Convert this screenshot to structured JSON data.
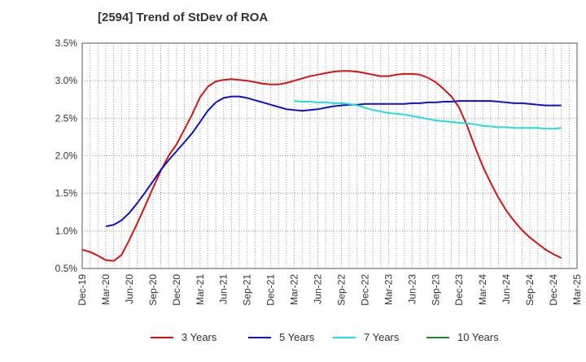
{
  "chart_data": {
    "type": "line",
    "title": "[2594]  Trend of StDev of ROA",
    "xlabel": "",
    "ylabel": "",
    "x_ticks": [
      "Dec-19",
      "Mar-20",
      "Jun-20",
      "Sep-20",
      "Dec-20",
      "Mar-21",
      "Jun-21",
      "Sep-21",
      "Dec-21",
      "Mar-22",
      "Jun-22",
      "Sep-22",
      "Dec-22",
      "Mar-23",
      "Jun-23",
      "Sep-23",
      "Dec-23",
      "Mar-24",
      "Jun-24",
      "Sep-24",
      "Dec-24",
      "Mar-25"
    ],
    "y_ticks": [
      "0.5%",
      "1.0%",
      "1.5%",
      "2.0%",
      "2.5%",
      "3.0%",
      "3.5%"
    ],
    "ylim": [
      0.5,
      3.5
    ],
    "y_unit": "%",
    "grid": "dotted vertical and horizontal",
    "legend_position": "bottom",
    "series": [
      {
        "name": "3 Years",
        "color": "#dd1111",
        "points": [
          [
            "Dec-19",
            0.75
          ],
          [
            "Jan-20",
            0.72
          ],
          [
            "Feb-20",
            0.67
          ],
          [
            "Mar-20",
            0.61
          ],
          [
            "Apr-20",
            0.6
          ],
          [
            "May-20",
            0.68
          ],
          [
            "Jun-20",
            0.88
          ],
          [
            "Jul-20",
            1.1
          ],
          [
            "Aug-20",
            1.33
          ],
          [
            "Sep-20",
            1.57
          ],
          [
            "Oct-20",
            1.8
          ],
          [
            "Nov-20",
            2.0
          ],
          [
            "Dec-20",
            2.15
          ],
          [
            "Jan-21",
            2.35
          ],
          [
            "Feb-21",
            2.55
          ],
          [
            "Mar-21",
            2.78
          ],
          [
            "Apr-21",
            2.92
          ],
          [
            "May-21",
            2.99
          ],
          [
            "Jun-21",
            3.01
          ],
          [
            "Jul-21",
            3.02
          ],
          [
            "Aug-21",
            3.01
          ],
          [
            "Sep-21",
            3.0
          ],
          [
            "Oct-21",
            2.98
          ],
          [
            "Nov-21",
            2.96
          ],
          [
            "Dec-21",
            2.95
          ],
          [
            "Jan-22",
            2.95
          ],
          [
            "Feb-22",
            2.97
          ],
          [
            "Mar-22",
            3.0
          ],
          [
            "Apr-22",
            3.03
          ],
          [
            "May-22",
            3.06
          ],
          [
            "Jun-22",
            3.08
          ],
          [
            "Jul-22",
            3.1
          ],
          [
            "Aug-22",
            3.12
          ],
          [
            "Sep-22",
            3.13
          ],
          [
            "Oct-22",
            3.13
          ],
          [
            "Nov-22",
            3.12
          ],
          [
            "Dec-22",
            3.1
          ],
          [
            "Jan-23",
            3.08
          ],
          [
            "Feb-23",
            3.06
          ],
          [
            "Mar-23",
            3.06
          ],
          [
            "Apr-23",
            3.08
          ],
          [
            "May-23",
            3.09
          ],
          [
            "Jun-23",
            3.09
          ],
          [
            "Jul-23",
            3.08
          ],
          [
            "Aug-23",
            3.04
          ],
          [
            "Sep-23",
            2.98
          ],
          [
            "Oct-23",
            2.89
          ],
          [
            "Nov-23",
            2.79
          ],
          [
            "Dec-23",
            2.64
          ],
          [
            "Jan-24",
            2.4
          ],
          [
            "Feb-24",
            2.12
          ],
          [
            "Mar-24",
            1.86
          ],
          [
            "Apr-24",
            1.64
          ],
          [
            "May-24",
            1.44
          ],
          [
            "Jun-24",
            1.27
          ],
          [
            "Jul-24",
            1.13
          ],
          [
            "Aug-24",
            1.01
          ],
          [
            "Sep-24",
            0.91
          ],
          [
            "Oct-24",
            0.83
          ],
          [
            "Nov-24",
            0.75
          ],
          [
            "Dec-24",
            0.69
          ],
          [
            "Jan-25",
            0.64
          ]
        ]
      },
      {
        "name": "5 Years",
        "color": "#1111cc",
        "points": [
          [
            "Mar-20",
            1.06
          ],
          [
            "Apr-20",
            1.08
          ],
          [
            "May-20",
            1.14
          ],
          [
            "Jun-20",
            1.24
          ],
          [
            "Jul-20",
            1.37
          ],
          [
            "Aug-20",
            1.51
          ],
          [
            "Sep-20",
            1.66
          ],
          [
            "Oct-20",
            1.81
          ],
          [
            "Nov-20",
            1.94
          ],
          [
            "Dec-20",
            2.06
          ],
          [
            "Jan-21",
            2.18
          ],
          [
            "Feb-21",
            2.3
          ],
          [
            "Mar-21",
            2.45
          ],
          [
            "Apr-21",
            2.6
          ],
          [
            "May-21",
            2.71
          ],
          [
            "Jun-21",
            2.77
          ],
          [
            "Jul-21",
            2.79
          ],
          [
            "Aug-21",
            2.79
          ],
          [
            "Sep-21",
            2.77
          ],
          [
            "Oct-21",
            2.74
          ],
          [
            "Nov-21",
            2.71
          ],
          [
            "Dec-21",
            2.68
          ],
          [
            "Jan-22",
            2.65
          ],
          [
            "Feb-22",
            2.62
          ],
          [
            "Mar-22",
            2.61
          ],
          [
            "Apr-22",
            2.6
          ],
          [
            "May-22",
            2.61
          ],
          [
            "Jun-22",
            2.62
          ],
          [
            "Jul-22",
            2.64
          ],
          [
            "Aug-22",
            2.66
          ],
          [
            "Sep-22",
            2.67
          ],
          [
            "Oct-22",
            2.68
          ],
          [
            "Nov-22",
            2.68
          ],
          [
            "Dec-22",
            2.69
          ],
          [
            "Jan-23",
            2.69
          ],
          [
            "Feb-23",
            2.69
          ],
          [
            "Mar-23",
            2.69
          ],
          [
            "Apr-23",
            2.69
          ],
          [
            "May-23",
            2.69
          ],
          [
            "Jun-23",
            2.7
          ],
          [
            "Jul-23",
            2.7
          ],
          [
            "Aug-23",
            2.71
          ],
          [
            "Sep-23",
            2.71
          ],
          [
            "Oct-23",
            2.72
          ],
          [
            "Nov-23",
            2.72
          ],
          [
            "Dec-23",
            2.73
          ],
          [
            "Jan-24",
            2.73
          ],
          [
            "Feb-24",
            2.73
          ],
          [
            "Mar-24",
            2.73
          ],
          [
            "Apr-24",
            2.73
          ],
          [
            "May-24",
            2.72
          ],
          [
            "Jun-24",
            2.71
          ],
          [
            "Jul-24",
            2.7
          ],
          [
            "Aug-24",
            2.7
          ],
          [
            "Sep-24",
            2.69
          ],
          [
            "Oct-24",
            2.68
          ],
          [
            "Nov-24",
            2.67
          ],
          [
            "Dec-24",
            2.67
          ],
          [
            "Jan-25",
            2.67
          ]
        ]
      },
      {
        "name": "7 Years",
        "color": "#22dddd",
        "points": [
          [
            "Mar-22",
            2.73
          ],
          [
            "Apr-22",
            2.72
          ],
          [
            "May-22",
            2.72
          ],
          [
            "Jun-22",
            2.71
          ],
          [
            "Jul-22",
            2.71
          ],
          [
            "Aug-22",
            2.7
          ],
          [
            "Sep-22",
            2.7
          ],
          [
            "Oct-22",
            2.69
          ],
          [
            "Nov-22",
            2.67
          ],
          [
            "Dec-22",
            2.64
          ],
          [
            "Jan-23",
            2.61
          ],
          [
            "Feb-23",
            2.59
          ],
          [
            "Mar-23",
            2.57
          ],
          [
            "Apr-23",
            2.56
          ],
          [
            "May-23",
            2.55
          ],
          [
            "Jun-23",
            2.53
          ],
          [
            "Jul-23",
            2.51
          ],
          [
            "Aug-23",
            2.49
          ],
          [
            "Sep-23",
            2.47
          ],
          [
            "Oct-23",
            2.46
          ],
          [
            "Nov-23",
            2.45
          ],
          [
            "Dec-23",
            2.44
          ],
          [
            "Jan-24",
            2.43
          ],
          [
            "Feb-24",
            2.42
          ],
          [
            "Mar-24",
            2.4
          ],
          [
            "Apr-24",
            2.39
          ],
          [
            "May-24",
            2.38
          ],
          [
            "Jun-24",
            2.38
          ],
          [
            "Jul-24",
            2.37
          ],
          [
            "Aug-24",
            2.37
          ],
          [
            "Sep-24",
            2.37
          ],
          [
            "Oct-24",
            2.37
          ],
          [
            "Nov-24",
            2.36
          ],
          [
            "Dec-24",
            2.36
          ],
          [
            "Jan-25",
            2.37
          ]
        ]
      },
      {
        "name": "10 Years",
        "color": "#228822",
        "points": []
      }
    ]
  }
}
